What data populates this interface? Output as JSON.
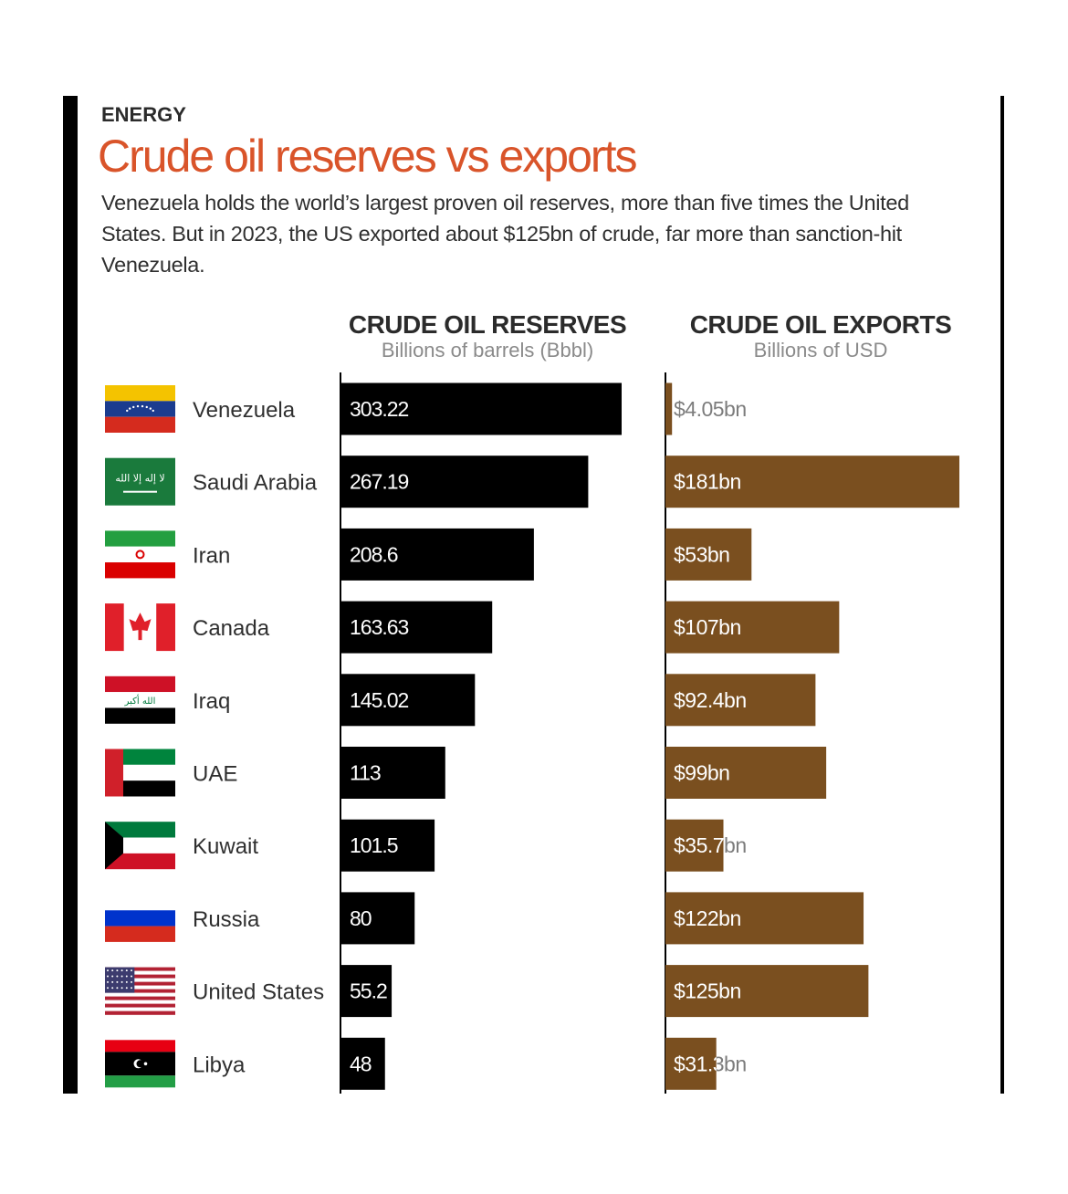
{
  "header": {
    "kicker": "ENERGY",
    "title": "Crude oil reserves vs exports",
    "subtitle": "Venezuela holds the world’s largest proven oil reserves, more than five times the United States. But in 2023, the US exported about $125bn of crude, far more than sanction-hit Venezuela."
  },
  "columns": {
    "reserves": {
      "heading": "CRUDE OIL RESERVES",
      "unit": "Billions of barrels (Bbbl)"
    },
    "exports": {
      "heading": "CRUDE OIL EXPORTS",
      "unit": "Billions of USD"
    }
  },
  "colors": {
    "reserves_bar": "#000000",
    "exports_bar": "#7a4f1f",
    "title": "#d9542a"
  },
  "chart_data": [
    {
      "type": "bar",
      "orientation": "horizontal",
      "title": "CRUDE OIL RESERVES",
      "xlabel": "Billions of barrels (Bbbl)",
      "categories": [
        "Venezuela",
        "Saudi Arabia",
        "Iran",
        "Canada",
        "Iraq",
        "UAE",
        "Kuwait",
        "Russia",
        "United States",
        "Libya"
      ],
      "values": [
        303.22,
        267.19,
        208.6,
        163.63,
        145.02,
        113,
        101.5,
        80,
        55.2,
        48
      ],
      "labels": [
        "303.22",
        "267.19",
        "208.6",
        "163.63",
        "145.02",
        "113",
        "101.5",
        "80",
        "55.2",
        "48"
      ],
      "color": "#000000",
      "xlim": [
        0,
        303.22
      ]
    },
    {
      "type": "bar",
      "orientation": "horizontal",
      "title": "CRUDE OIL EXPORTS",
      "xlabel": "Billions of USD",
      "categories": [
        "Venezuela",
        "Saudi Arabia",
        "Iran",
        "Canada",
        "Iraq",
        "UAE",
        "Kuwait",
        "Russia",
        "United States",
        "Libya"
      ],
      "values": [
        4.05,
        181,
        53,
        107,
        92.4,
        99,
        35.7,
        122,
        125,
        31.3
      ],
      "labels": [
        "$4.05bn",
        "$181bn",
        "$53bn",
        "$107bn",
        "$92.4bn",
        "$99bn",
        "$35.7bn",
        "$122bn",
        "$125bn",
        "$31.3bn"
      ],
      "color": "#7a4f1f",
      "xlim": [
        0,
        181
      ]
    }
  ],
  "flags": [
    {
      "country": "Venezuela",
      "icon": "venezuela-flag-icon"
    },
    {
      "country": "Saudi Arabia",
      "icon": "saudi-arabia-flag-icon"
    },
    {
      "country": "Iran",
      "icon": "iran-flag-icon"
    },
    {
      "country": "Canada",
      "icon": "canada-flag-icon"
    },
    {
      "country": "Iraq",
      "icon": "iraq-flag-icon"
    },
    {
      "country": "UAE",
      "icon": "uae-flag-icon"
    },
    {
      "country": "Kuwait",
      "icon": "kuwait-flag-icon"
    },
    {
      "country": "Russia",
      "icon": "russia-flag-icon"
    },
    {
      "country": "United States",
      "icon": "united-states-flag-icon"
    },
    {
      "country": "Libya",
      "icon": "libya-flag-icon"
    }
  ]
}
